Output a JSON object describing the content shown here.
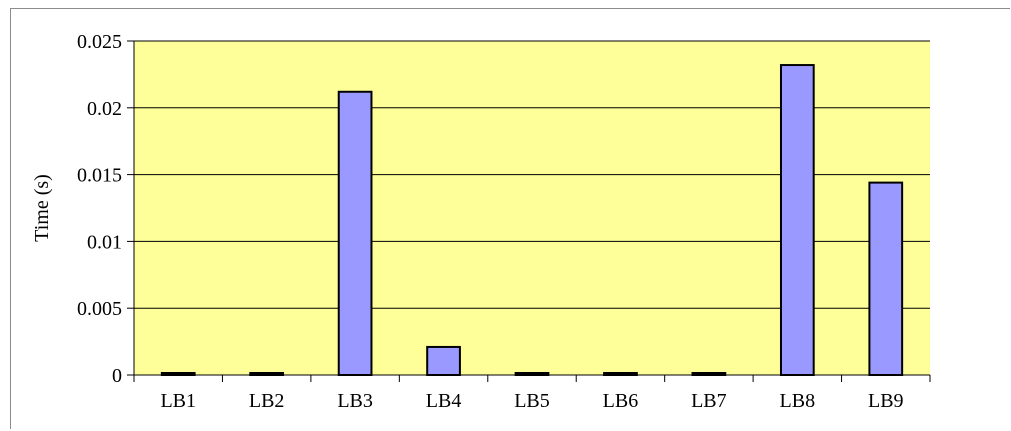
{
  "chart_data": {
    "type": "bar",
    "title": "",
    "xlabel": "",
    "ylabel": "Time (s)",
    "categories": [
      "LB1",
      "LB2",
      "LB3",
      "LB4",
      "LB5",
      "LB6",
      "LB7",
      "LB8",
      "LB9"
    ],
    "values": [
      0.00012,
      8e-05,
      0.0212,
      0.0021,
      8e-05,
      8e-05,
      0.00012,
      0.0232,
      0.0144
    ],
    "ylim": [
      0,
      0.025
    ],
    "yticks": [
      0,
      0.005,
      0.01,
      0.015,
      0.02,
      0.025
    ],
    "ytick_labels": [
      "0",
      "0.005",
      "0.01",
      "0.015",
      "0.02",
      "0.025"
    ],
    "grid": true,
    "legend": "none",
    "colors": {
      "plot_background": "#ffff99",
      "bar_fill": "#9999ff",
      "bar_stroke": "#000000",
      "gridline": "#000000"
    }
  }
}
